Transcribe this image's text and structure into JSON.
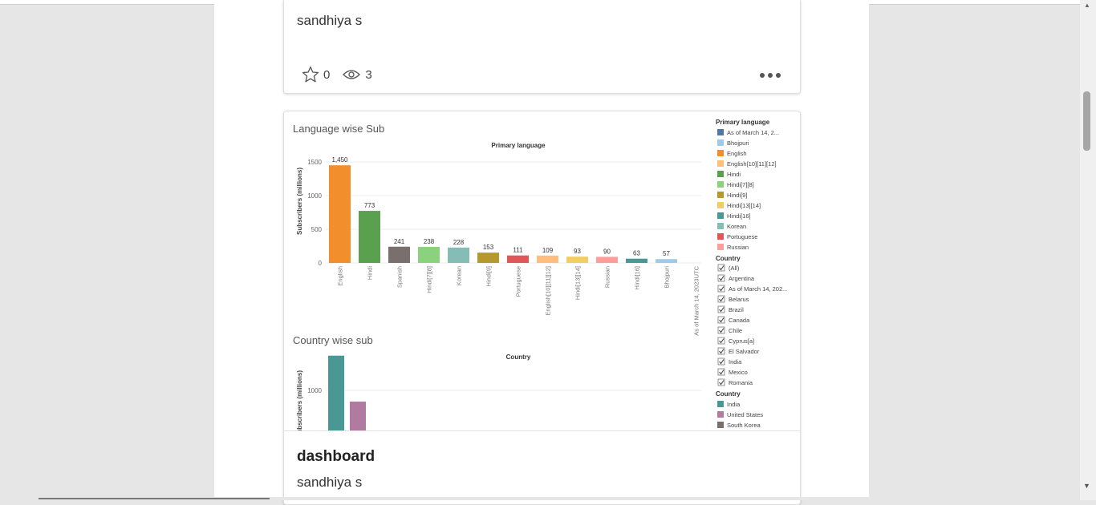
{
  "card1": {
    "author": "sandhiya s",
    "favorites": "0",
    "views": "3"
  },
  "card2": {
    "title": "dashboard",
    "author": "sandhiya s"
  },
  "viz": {
    "lang_title": "Language wise Sub",
    "lang_chart_header": "Primary language",
    "lang_ylabel": "Subscribers (millions)",
    "country_title": "Country wise sub",
    "country_chart_header": "Country",
    "country_ylabel": "Subscribers (millions)",
    "legend_lang_title": "Primary language",
    "legend_lang_items": [
      {
        "label": "As of March 14, 2...",
        "color": "#4e79a7"
      },
      {
        "label": "Bhojpuri",
        "color": "#a0cbe8"
      },
      {
        "label": "English",
        "color": "#f28e2b"
      },
      {
        "label": "English[10][11][12]",
        "color": "#ffbe7d"
      },
      {
        "label": "Hindi",
        "color": "#59a14f"
      },
      {
        "label": "Hindi[7][8]",
        "color": "#8cd17d"
      },
      {
        "label": "Hindi[9]",
        "color": "#b6992d"
      },
      {
        "label": "Hindi[13][14]",
        "color": "#f1ce63"
      },
      {
        "label": "Hindi[16]",
        "color": "#499894"
      },
      {
        "label": "Korean",
        "color": "#86bcb6"
      },
      {
        "label": "Portuguese",
        "color": "#e15759"
      },
      {
        "label": "Russian",
        "color": "#ff9d9a"
      }
    ],
    "filter_title": "Country",
    "filter_items": [
      "(All)",
      "Argentina",
      "As of March 14, 202...",
      "Belarus",
      "Brazil",
      "Canada",
      "Chile",
      "Cyprus[a]",
      "El Salvador",
      "India",
      "Mexico",
      "Romania"
    ],
    "legend_country_title": "Country",
    "legend_country_items": [
      {
        "label": "India",
        "color": "#499894"
      },
      {
        "label": "United States",
        "color": "#b07aa1"
      },
      {
        "label": "South Korea",
        "color": "#79706e"
      }
    ]
  },
  "chart_data": [
    {
      "type": "bar",
      "title": "Language wise Sub",
      "xlabel": "Primary language",
      "ylabel": "Subscribers (millions)",
      "ylim": [
        0,
        1500
      ],
      "yticks": [
        0,
        500,
        1000,
        1500
      ],
      "categories": [
        "English",
        "Hindi",
        "Spanish",
        "Hindi[7][8]",
        "Korean",
        "Hindi[9]",
        "Portuguese",
        "English[10][11][12]",
        "Hindi[13][14]",
        "Russian",
        "Hindi[16]",
        "Bhojpuri",
        "As of March 14, 2023UTC"
      ],
      "values": [
        1450,
        773,
        241,
        238,
        228,
        153,
        111,
        109,
        93,
        90,
        63,
        57,
        null
      ],
      "data_labels": [
        "1,450",
        "773",
        "241",
        "238",
        "228",
        "153",
        "111",
        "109",
        "93",
        "90",
        "63",
        "57",
        ""
      ],
      "colors": [
        "#f28e2b",
        "#59a14f",
        "#79706e",
        "#8cd17d",
        "#86bcb6",
        "#b6992d",
        "#e15759",
        "#ffbe7d",
        "#f1ce63",
        "#ff9d9a",
        "#499894",
        "#a0cbe8",
        "#4e79a7"
      ],
      "grid": true
    },
    {
      "type": "bar",
      "title": "Country wise sub",
      "xlabel": "Country",
      "ylabel": "Subscribers (millions)",
      "yticks": [
        1000
      ],
      "categories": [
        "India",
        "United States"
      ],
      "values": [
        1370,
        880
      ],
      "colors": [
        "#499894",
        "#b07aa1"
      ],
      "grid": true
    }
  ]
}
